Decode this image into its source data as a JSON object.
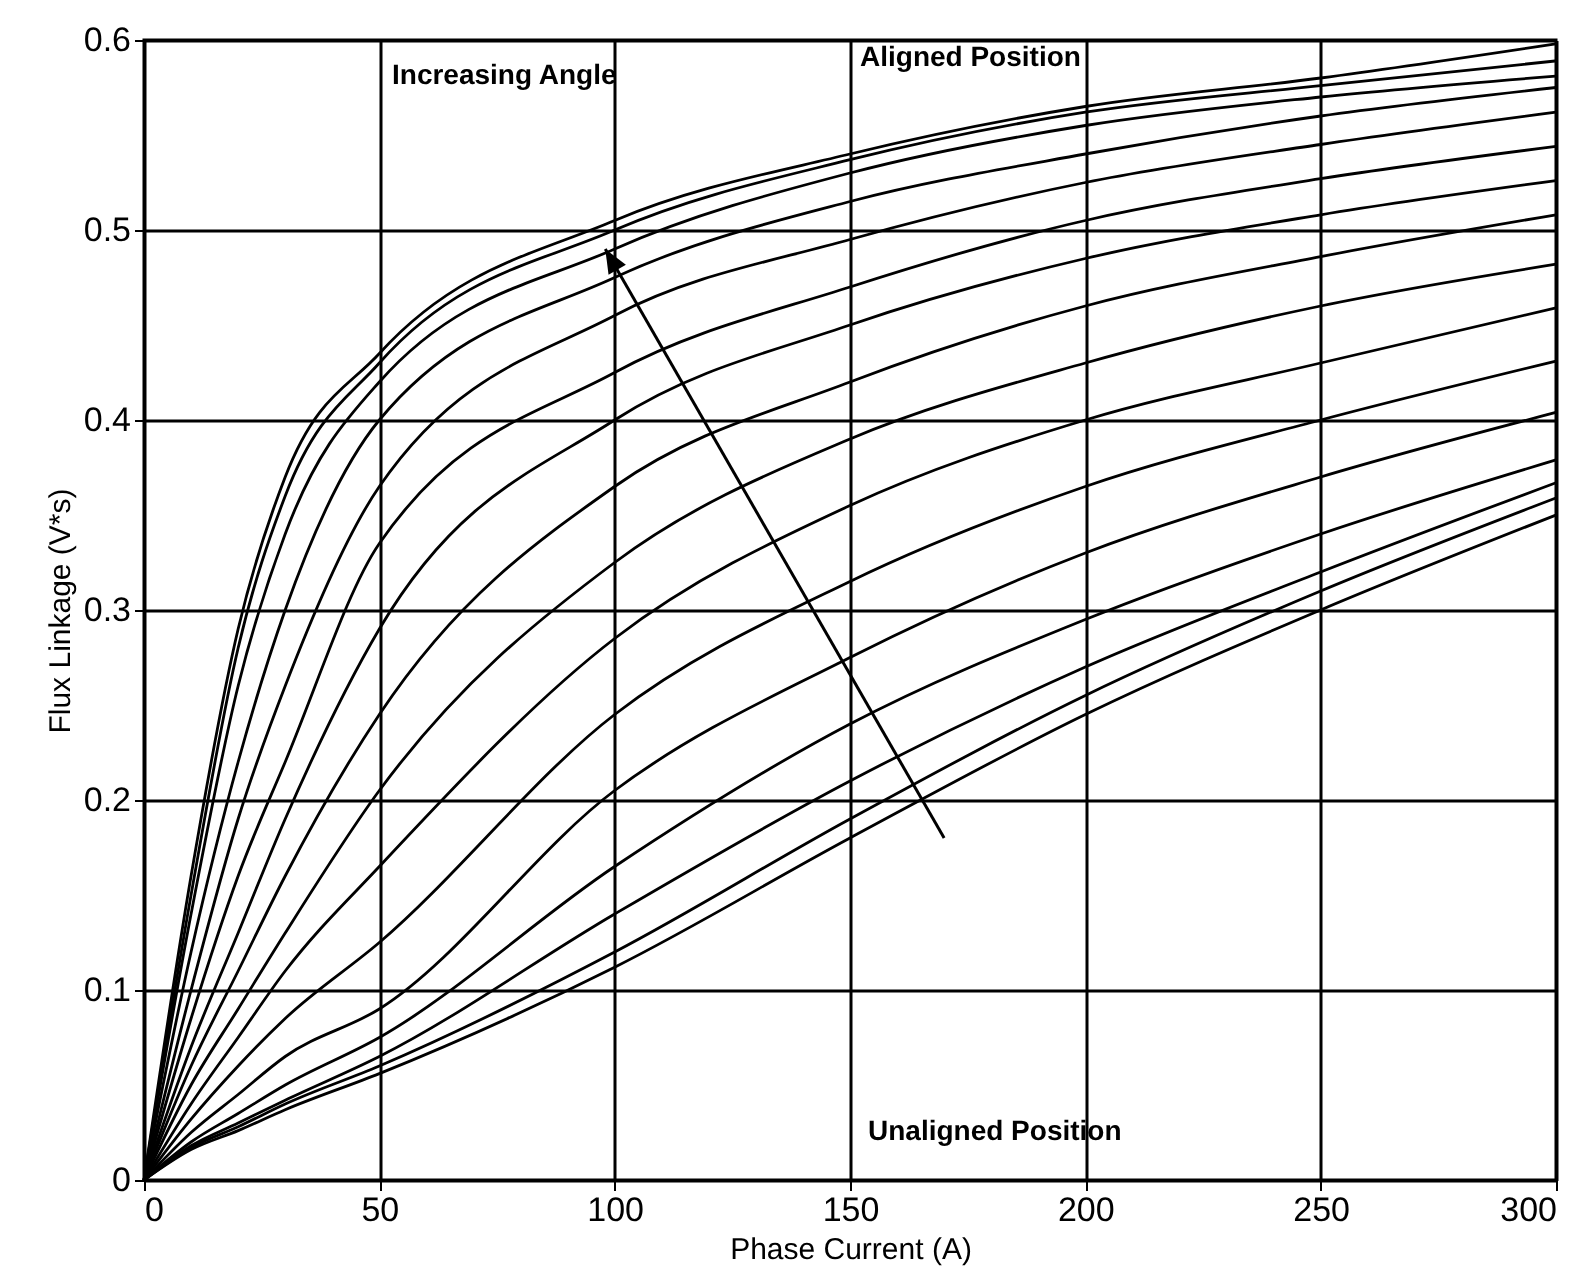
{
  "chart_data": {
    "type": "line",
    "xlabel": "Phase Current (A)",
    "ylabel": "Flux Linkage (V*s)",
    "x": [
      0,
      10,
      20,
      30,
      50,
      100,
      150,
      200,
      250,
      300
    ],
    "xlim": [
      0,
      300
    ],
    "xticks": [
      0,
      50,
      100,
      150,
      200,
      250,
      300
    ],
    "ylim": [
      0,
      0.6
    ],
    "yticks": [
      0,
      0.1,
      0.2,
      0.3,
      0.4,
      0.5,
      0.6
    ],
    "grid": true,
    "legend": false,
    "marker": "none",
    "line_style": "solid",
    "annotations": [
      "Increasing Angle",
      "Aligned Position",
      "Unaligned Position"
    ],
    "series": [
      {
        "color": "#000000",
        "values": [
          0,
          0.16,
          0.29,
          0.37,
          0.435,
          0.505,
          0.54,
          0.565,
          0.58,
          0.598
        ]
      },
      {
        "color": "#000000",
        "values": [
          0,
          0.15,
          0.28,
          0.36,
          0.43,
          0.5,
          0.537,
          0.562,
          0.576,
          0.589
        ]
      },
      {
        "color": "#000000",
        "values": [
          0,
          0.14,
          0.26,
          0.34,
          0.42,
          0.49,
          0.53,
          0.555,
          0.57,
          0.581
        ]
      },
      {
        "color": "#000000",
        "values": [
          0,
          0.12,
          0.22,
          0.3,
          0.4,
          0.475,
          0.515,
          0.54,
          0.56,
          0.575
        ]
      },
      {
        "color": "#000000",
        "values": [
          0,
          0.1,
          0.19,
          0.26,
          0.365,
          0.455,
          0.495,
          0.525,
          0.545,
          0.562
        ]
      },
      {
        "color": "#000000",
        "values": [
          0,
          0.085,
          0.16,
          0.22,
          0.335,
          0.425,
          0.47,
          0.505,
          0.527,
          0.544
        ]
      },
      {
        "color": "#000000",
        "values": [
          0,
          0.07,
          0.13,
          0.19,
          0.29,
          0.4,
          0.45,
          0.485,
          0.508,
          0.526
        ]
      },
      {
        "color": "#000000",
        "values": [
          0,
          0.06,
          0.11,
          0.16,
          0.245,
          0.365,
          0.42,
          0.46,
          0.486,
          0.508
        ]
      },
      {
        "color": "#000000",
        "values": [
          0,
          0.05,
          0.09,
          0.13,
          0.205,
          0.325,
          0.39,
          0.43,
          0.46,
          0.482
        ]
      },
      {
        "color": "#000000",
        "values": [
          0,
          0.04,
          0.075,
          0.11,
          0.165,
          0.285,
          0.355,
          0.4,
          0.43,
          0.459
        ]
      },
      {
        "color": "#000000",
        "values": [
          0,
          0.032,
          0.06,
          0.085,
          0.125,
          0.245,
          0.315,
          0.365,
          0.4,
          0.431
        ]
      },
      {
        "color": "#000000",
        "values": [
          0,
          0.025,
          0.045,
          0.065,
          0.09,
          0.205,
          0.275,
          0.33,
          0.37,
          0.404
        ]
      },
      {
        "color": "#000000",
        "values": [
          0,
          0.02,
          0.035,
          0.05,
          0.075,
          0.165,
          0.24,
          0.295,
          0.34,
          0.379
        ]
      },
      {
        "color": "#000000",
        "values": [
          0,
          0.018,
          0.03,
          0.042,
          0.065,
          0.14,
          0.21,
          0.27,
          0.32,
          0.367
        ]
      },
      {
        "color": "#000000",
        "values": [
          0,
          0.017,
          0.028,
          0.04,
          0.06,
          0.12,
          0.19,
          0.255,
          0.31,
          0.359
        ]
      },
      {
        "color": "#000000",
        "values": [
          0,
          0.016,
          0.026,
          0.037,
          0.056,
          0.112,
          0.18,
          0.245,
          0.3,
          0.35
        ]
      }
    ]
  }
}
